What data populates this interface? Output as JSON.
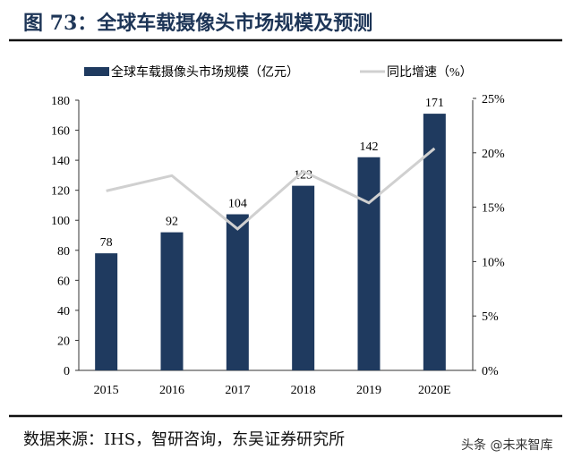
{
  "title": "图 73：全球车载摄像头市场规模及预测",
  "source": "数据来源：IHS，智研咨询，东吴证券研究所",
  "watermark": "头条 @未来智库",
  "chart_data": {
    "type": "bar+line",
    "categories": [
      "2015",
      "2016",
      "2017",
      "2018",
      "2019",
      "2020E"
    ],
    "series": [
      {
        "name": "全球车载摄像头市场规模（亿元）",
        "type": "bar",
        "axis": "left",
        "color": "#1f3a5f",
        "values": [
          78,
          92,
          104,
          123,
          142,
          171
        ],
        "data_labels": [
          "78",
          "92",
          "104",
          "123",
          "142",
          "171"
        ]
      },
      {
        "name": "同比增速（%）",
        "type": "line",
        "axis": "right",
        "color": "#d0d0d0",
        "values": [
          16.5,
          17.9,
          13.0,
          18.3,
          15.4,
          20.4
        ]
      }
    ],
    "y_left": {
      "lim": [
        0,
        180
      ],
      "ticks": [
        "0",
        "20",
        "40",
        "60",
        "80",
        "100",
        "120",
        "140",
        "160",
        "180"
      ]
    },
    "y_right": {
      "lim": [
        0,
        25
      ],
      "ticks": [
        "0%",
        "5%",
        "10%",
        "15%",
        "20%",
        "25%"
      ]
    },
    "grid": false,
    "legend_position": "top"
  }
}
